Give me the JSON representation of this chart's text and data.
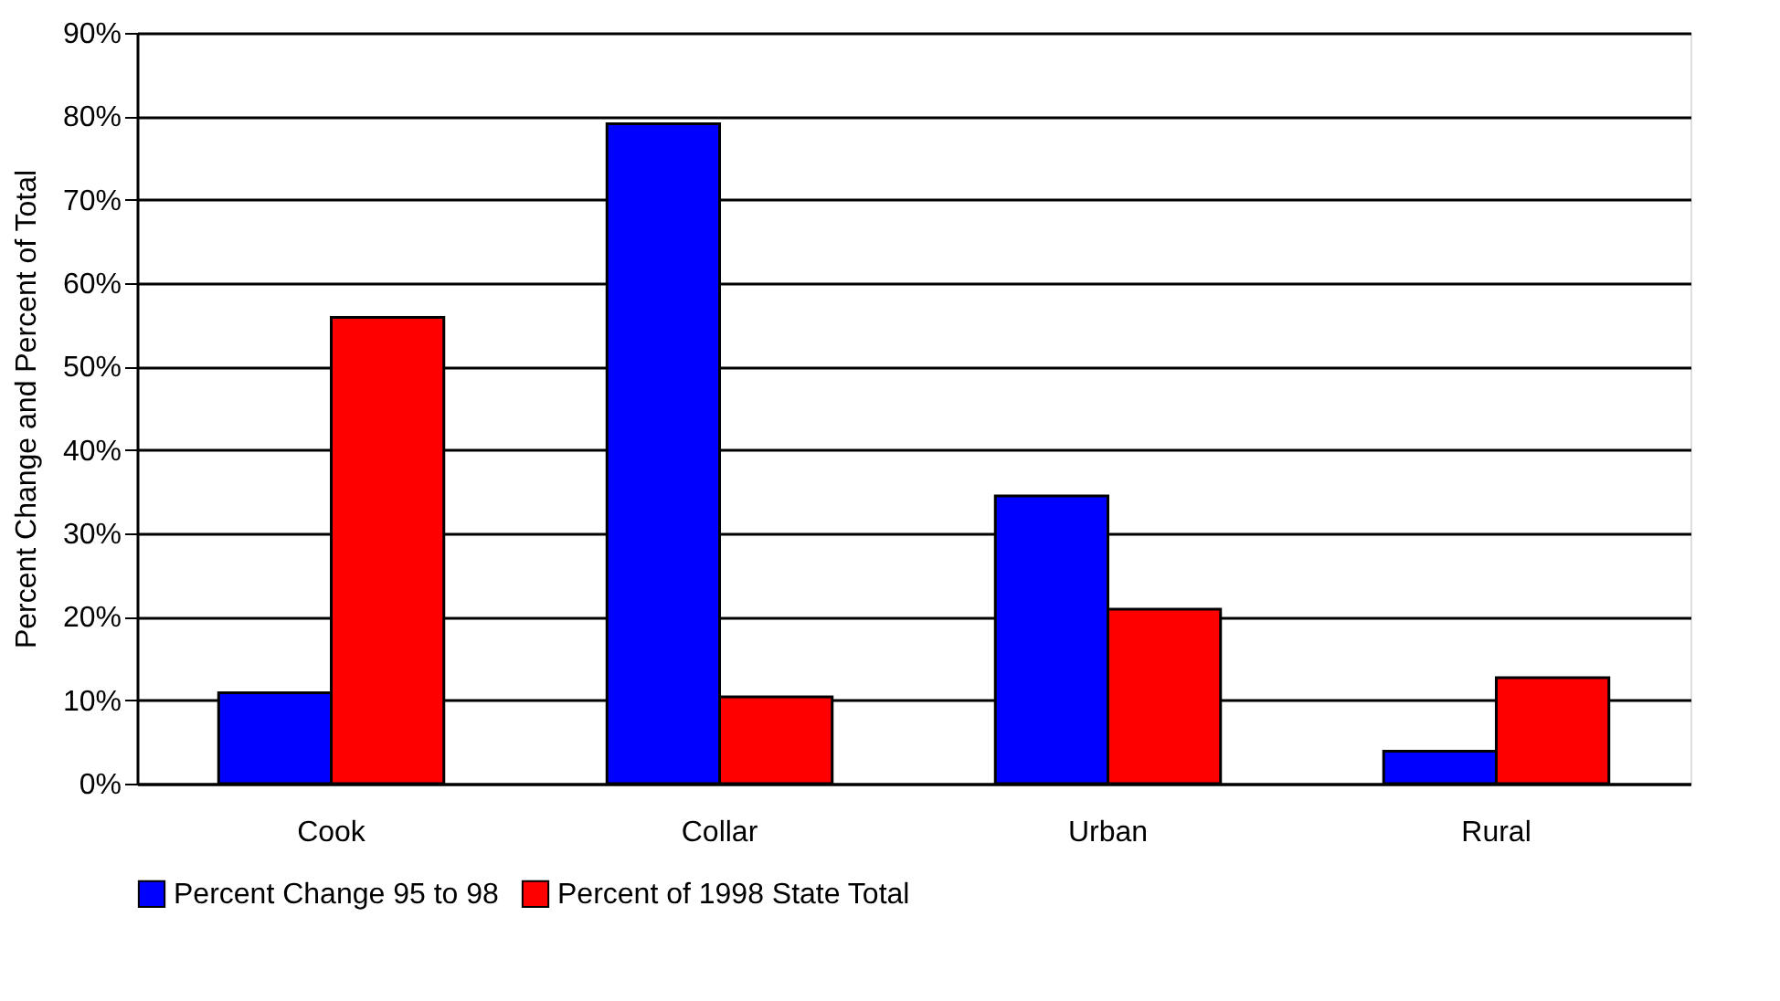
{
  "chart_data": {
    "type": "bar",
    "ylabel": "Percent Change and Percent of Total",
    "categories": [
      "Cook",
      "Collar",
      "Urban",
      "Rural"
    ],
    "series": [
      {
        "name": "Percent Change 95 to 98",
        "color": "#0000ff",
        "values": [
          10.9,
          79.1,
          34.5,
          3.9
        ]
      },
      {
        "name": "Percent of 1998 State Total",
        "color": "#ff0000",
        "values": [
          55.9,
          10.4,
          20.9,
          12.7
        ]
      }
    ],
    "ylim": [
      0,
      90
    ],
    "yticks": [
      {
        "value": 0,
        "label": "0%"
      },
      {
        "value": 10,
        "label": "10%"
      },
      {
        "value": 20,
        "label": "20%"
      },
      {
        "value": 30,
        "label": "30%"
      },
      {
        "value": 40,
        "label": "40%"
      },
      {
        "value": 50,
        "label": "50%"
      },
      {
        "value": 60,
        "label": "60%"
      },
      {
        "value": 70,
        "label": "70%"
      },
      {
        "value": 80,
        "label": "80%"
      },
      {
        "value": 90,
        "label": "90%"
      }
    ],
    "grid": "y",
    "legend": "bottom"
  }
}
